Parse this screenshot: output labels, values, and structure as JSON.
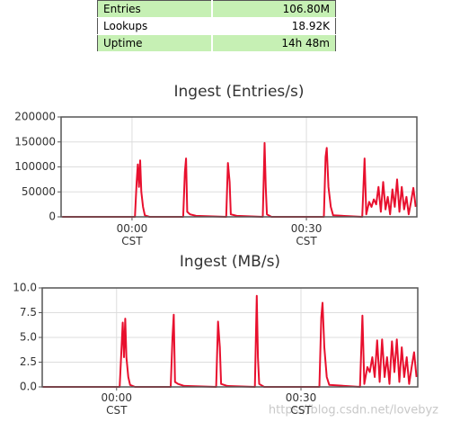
{
  "table": {
    "rows": [
      [
        "Entries",
        "106.80M"
      ],
      [
        "Lookups",
        "18.92K"
      ],
      [
        "Uptime",
        "14h 48m"
      ]
    ]
  },
  "chart_data": [
    {
      "type": "line",
      "title": "Ingest (Entries/s)",
      "color": "#e8102e",
      "grid": true,
      "x": [
        -12,
        0.5,
        0.8,
        1.0,
        1.2,
        1.4,
        1.6,
        1.9,
        2.2,
        3.0,
        8.8,
        9.1,
        9.3,
        9.5,
        10.0,
        11.0,
        16.2,
        16.5,
        16.8,
        17.0,
        18.0,
        22.5,
        22.8,
        23.0,
        23.2,
        24.0,
        33.0,
        33.3,
        33.5,
        33.8,
        34.2,
        34.6,
        39.6,
        40.0,
        40.3,
        40.8,
        41.2,
        41.6,
        42.0,
        42.4,
        42.8,
        43.2,
        43.6,
        44.0,
        44.4,
        44.8,
        45.2,
        45.6,
        46.0,
        46.4,
        46.8,
        47.2,
        47.6,
        48.0,
        48.4,
        48.8
      ],
      "values": [
        0,
        0,
        70000,
        105000,
        60000,
        113000,
        50000,
        20000,
        3000,
        0,
        0,
        90000,
        117000,
        10000,
        5000,
        2000,
        0,
        108000,
        70000,
        5000,
        2000,
        0,
        148000,
        60000,
        5000,
        0,
        0,
        120000,
        138000,
        60000,
        20000,
        3000,
        0,
        117000,
        5000,
        30000,
        20000,
        35000,
        25000,
        60000,
        10000,
        70000,
        15000,
        40000,
        5000,
        55000,
        20000,
        75000,
        10000,
        60000,
        15000,
        40000,
        5000,
        30000,
        58000,
        20000
      ],
      "xlim": [
        -12.2,
        49
      ],
      "xticks": [
        {
          "value": 0,
          "label": "00:00 CST"
        },
        {
          "value": 30,
          "label": "00:30 CST"
        }
      ],
      "ylim": [
        0,
        200000
      ],
      "yticks": [
        0,
        50000,
        100000,
        150000,
        200000
      ]
    },
    {
      "type": "line",
      "title": "Ingest (MB/s)",
      "color": "#e8102e",
      "grid": true,
      "x": [
        -12,
        0.5,
        0.8,
        1.0,
        1.2,
        1.4,
        1.6,
        1.9,
        2.2,
        3.0,
        8.8,
        9.1,
        9.3,
        9.5,
        10.0,
        11.0,
        16.2,
        16.5,
        16.8,
        17.0,
        18.0,
        22.5,
        22.8,
        23.0,
        23.2,
        24.0,
        33.0,
        33.3,
        33.5,
        33.8,
        34.2,
        34.6,
        39.6,
        40.0,
        40.3,
        40.8,
        41.2,
        41.6,
        42.0,
        42.4,
        42.8,
        43.2,
        43.6,
        44.0,
        44.4,
        44.8,
        45.2,
        45.6,
        46.0,
        46.4,
        46.8,
        47.2,
        47.6,
        48.0,
        48.4,
        48.8
      ],
      "values": [
        0,
        0,
        4,
        6.5,
        3,
        6.9,
        3,
        1,
        0.2,
        0,
        0,
        5,
        7.3,
        0.5,
        0.3,
        0.1,
        0,
        6.6,
        4,
        0.3,
        0.1,
        0,
        9.2,
        3,
        0.3,
        0,
        0,
        7,
        8.5,
        4,
        1,
        0.2,
        0,
        7.2,
        0.3,
        2,
        1.5,
        3,
        1,
        4.7,
        0.5,
        4.8,
        1,
        3,
        0.3,
        4.6,
        1.5,
        4.8,
        0.5,
        4,
        1,
        3,
        0.3,
        2,
        3.5,
        1
      ],
      "xlim": [
        -12.1,
        49
      ],
      "xticks": [
        {
          "value": 0,
          "label": "00:00 CST"
        },
        {
          "value": 30,
          "label": "00:30 CST"
        }
      ],
      "ylim": [
        0,
        10
      ],
      "yticks": [
        {
          "value": 0,
          "label": "0.0"
        },
        {
          "value": 2.5,
          "label": "2.5"
        },
        {
          "value": 5,
          "label": "5.0"
        },
        {
          "value": 7.5,
          "label": "7.5"
        },
        {
          "value": 10,
          "label": "10.0"
        }
      ]
    }
  ],
  "watermark": "https://blog.csdn.net/lovebyz"
}
